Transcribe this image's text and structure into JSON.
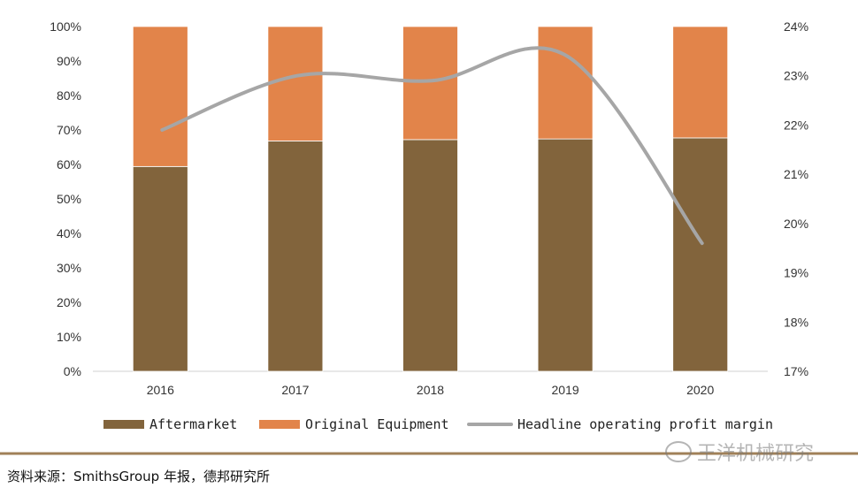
{
  "colors": {
    "aftermarket": "#82643C",
    "original_equipment": "#E2844A",
    "margin_line": "#A6A6A6",
    "divider": "#A08058"
  },
  "chart_data": {
    "type": "bar",
    "stacked": true,
    "categories": [
      "2016",
      "2017",
      "2018",
      "2019",
      "2020"
    ],
    "series": [
      {
        "name": "Aftermarket",
        "type": "bar",
        "axis": "left",
        "values": [
          59.4,
          66.8,
          67.2,
          67.4,
          67.7
        ]
      },
      {
        "name": "Original Equipment",
        "type": "bar",
        "axis": "left",
        "values": [
          40.6,
          33.2,
          32.8,
          32.6,
          32.3
        ]
      },
      {
        "name": "Headline operating profit margin",
        "type": "line",
        "axis": "right",
        "smooth": true,
        "values": [
          21.9,
          23.0,
          22.9,
          23.4,
          19.6
        ]
      }
    ],
    "left_axis": {
      "ylim": [
        0,
        100
      ],
      "ticks": [
        "0%",
        "10%",
        "20%",
        "30%",
        "40%",
        "50%",
        "60%",
        "70%",
        "80%",
        "90%",
        "100%"
      ]
    },
    "right_axis": {
      "ylim": [
        17,
        24
      ],
      "ticks": [
        "17%",
        "18%",
        "19%",
        "20%",
        "21%",
        "22%",
        "23%",
        "24%"
      ]
    },
    "legend_position": "bottom",
    "grid": false
  },
  "source": "资料来源：SmithsGroup 年报，德邦研究所",
  "watermark": "王洋机械研究"
}
